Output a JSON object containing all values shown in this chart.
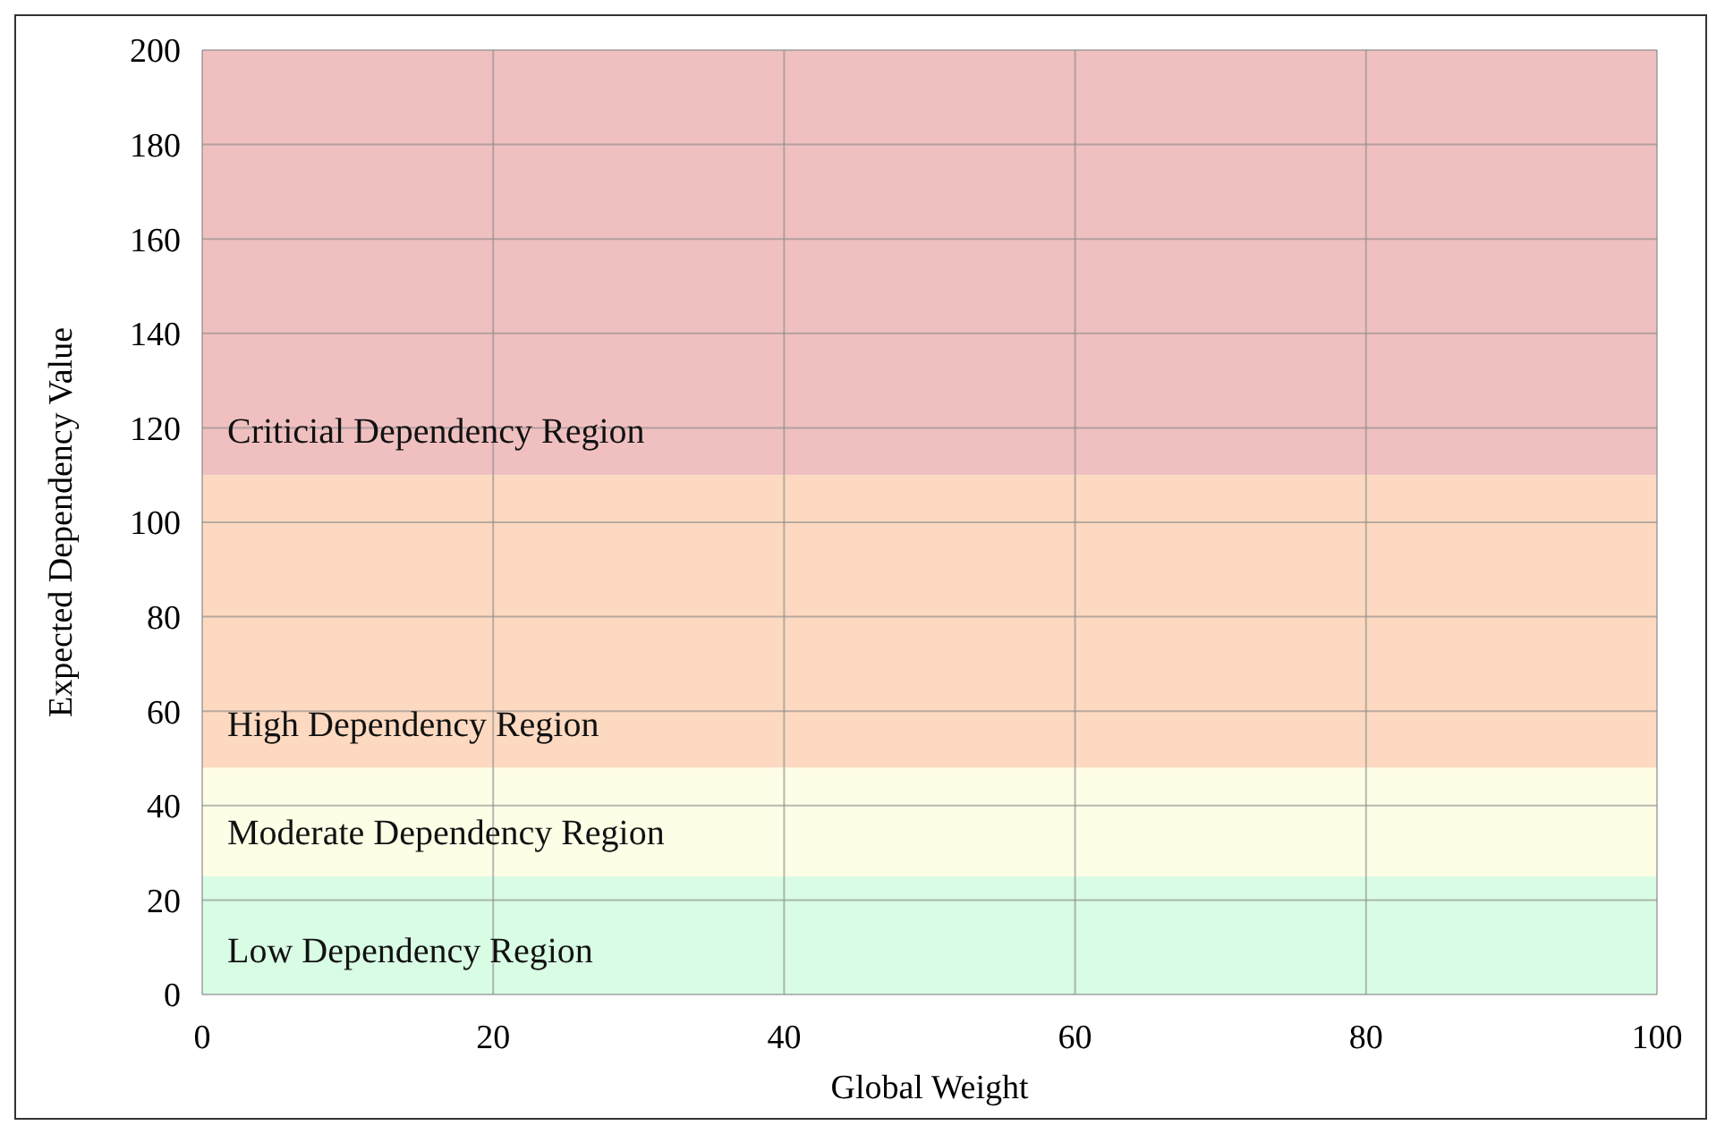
{
  "chart_data": {
    "type": "line",
    "xlabel": "Global Weight",
    "ylabel": "Expected Dependency Value",
    "xlim": [
      0,
      100
    ],
    "xticks": [
      0,
      20,
      40,
      60,
      80,
      100
    ],
    "ylim": [
      0,
      200
    ],
    "yticks": [
      0,
      20,
      40,
      60,
      80,
      100,
      120,
      140,
      160,
      180,
      200
    ],
    "grid": true,
    "bands": [
      {
        "axis": "y",
        "from": 110,
        "to": 200,
        "label": "Criticial Dependency Region",
        "color": "#f0c0c0"
      },
      {
        "axis": "y",
        "from": 48,
        "to": 110,
        "label": "High Dependency Region",
        "color": "#fcd9c0"
      },
      {
        "axis": "y",
        "from": 25,
        "to": 48,
        "label": "Moderate Dependency Region",
        "color": "#fefde6"
      },
      {
        "axis": "y",
        "from": 0,
        "to": 25,
        "label": "Low Dependency Region",
        "color": "#d8fce4"
      }
    ]
  }
}
